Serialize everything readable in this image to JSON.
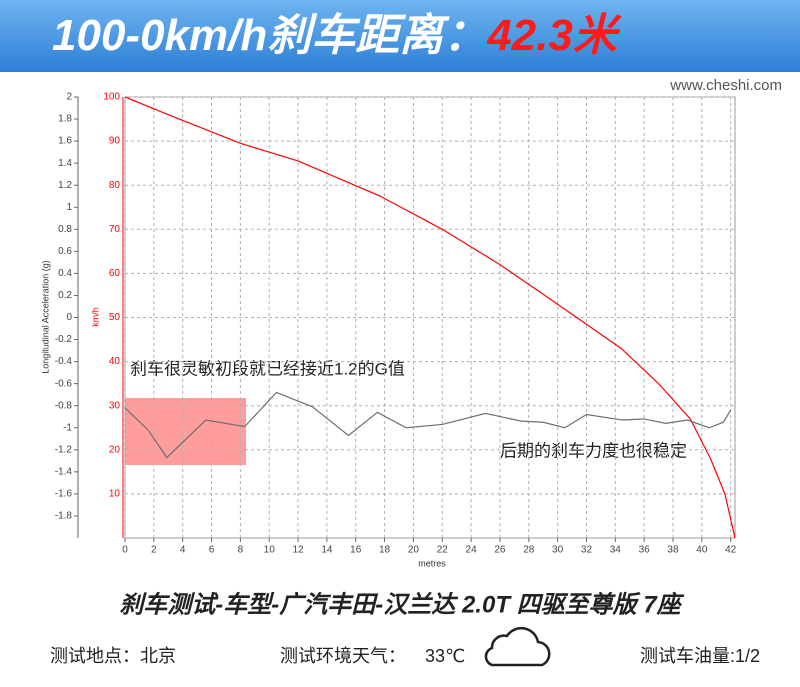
{
  "header": {
    "title": "100-0km/h刹车距离：",
    "highlight": "42.3米",
    "watermark": "www.cheshi.com"
  },
  "chart_data": {
    "type": "line",
    "xlabel": "metres",
    "ylabel": "Longitudinal Acceleration (g)",
    "y2label": "km/h",
    "xlim": [
      0,
      42.3
    ],
    "xticks": [
      0,
      2,
      4,
      6,
      8,
      10,
      12,
      14,
      16,
      18,
      20,
      22,
      24,
      26,
      28,
      30,
      32,
      34,
      36,
      38,
      40,
      42
    ],
    "ylim": [
      -2,
      2
    ],
    "yticks": [
      2,
      1.8,
      1.6,
      1.4,
      1.2,
      1,
      0.8,
      0.6,
      0.4,
      0.2,
      0,
      -0.2,
      -0.4,
      -0.6,
      -0.8,
      -1,
      -1.2,
      -1.4,
      -1.6,
      -1.8
    ],
    "y2lim": [
      0,
      100
    ],
    "y2ticks": [
      100,
      90,
      80,
      70,
      60,
      50,
      40,
      30,
      20,
      10
    ],
    "grid": true,
    "series": [
      {
        "color": "#ff0000",
        "axis": "y2",
        "x": [
          0,
          3,
          8,
          12,
          17.7,
          22,
          26,
          30,
          34.4,
          37,
          39.2,
          40.6,
          41.6,
          42.3
        ],
        "values": [
          100,
          96,
          89.5,
          85.5,
          77.5,
          70,
          62,
          53,
          43,
          35,
          27,
          18,
          10,
          0
        ]
      },
      {
        "color": "#6e6e6e",
        "axis": "y",
        "x": [
          0,
          1.6,
          2.9,
          5.6,
          8.3,
          10.5,
          13,
          15.5,
          17.5,
          19.5,
          22,
          25,
          27.5,
          29,
          30.5,
          32,
          34.5,
          36,
          37.5,
          39,
          40.5,
          41.5,
          42
        ],
        "values": [
          -0.82,
          -1.02,
          -1.27,
          -0.93,
          -0.99,
          -0.68,
          -0.81,
          -1.07,
          -0.86,
          -1.0,
          -0.97,
          -0.87,
          -0.94,
          -0.95,
          -1.0,
          -0.88,
          -0.93,
          -0.92,
          -0.96,
          -0.93,
          -1.0,
          -0.95,
          -0.84
        ]
      }
    ],
    "annotations": [
      "刹车很灵敏初段就已经接近1.2的G值",
      "后期的刹车力度也很稳定"
    ]
  },
  "footer": {
    "model": "刹车测试-车型-广汽丰田-汉兰达 2.0T 四驱至尊版 7座",
    "location": "测试地点：北京",
    "weather": "测试环境天气：",
    "temperature": "33℃",
    "fuel": "测试车油量:1/2"
  }
}
